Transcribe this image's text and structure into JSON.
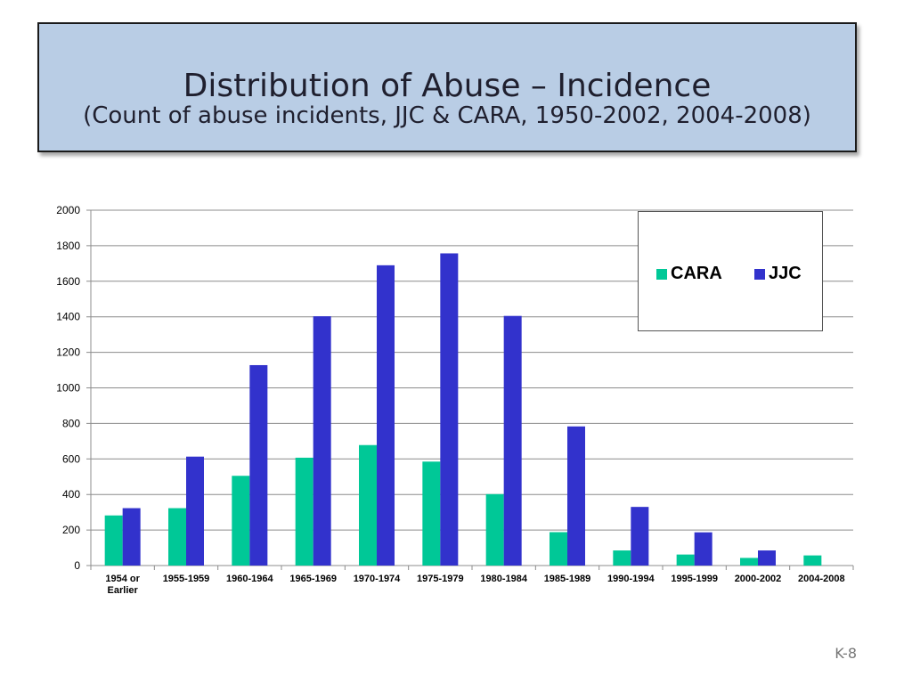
{
  "header": {
    "title": "Distribution of Abuse – Incidence",
    "subtitle": "(Count of abuse incidents, JJC & CARA, 1950-2002, 2004-2008)"
  },
  "footer": {
    "page_number": "K-8"
  },
  "colors": {
    "cara": "#00c897",
    "jjc": "#3232cc",
    "grid": "#8c8c8c",
    "title_bg": "#b9cde5"
  },
  "chart_data": {
    "type": "bar",
    "categories": [
      "1954 or Earlier",
      "1955-1959",
      "1960-1964",
      "1965-1969",
      "1970-1974",
      "1975-1979",
      "1980-1984",
      "1985-1989",
      "1990-1994",
      "1995-1999",
      "2000-2002",
      "2004-2008"
    ],
    "category_lines": [
      [
        "1954 or",
        "Earlier"
      ],
      [
        "1955-1959"
      ],
      [
        "1960-1964"
      ],
      [
        "1965-1969"
      ],
      [
        "1970-1974"
      ],
      [
        "1975-1979"
      ],
      [
        "1980-1984"
      ],
      [
        "1985-1989"
      ],
      [
        "1990-1994"
      ],
      [
        "1995-1999"
      ],
      [
        "2000-2002"
      ],
      [
        "2004-2008"
      ]
    ],
    "series": [
      {
        "name": "CARA",
        "color": "#00c897",
        "values": [
          282,
          323,
          505,
          607,
          678,
          585,
          402,
          188,
          85,
          62,
          43,
          57
        ]
      },
      {
        "name": "JJC",
        "color": "#3232cc",
        "values": [
          323,
          613,
          1128,
          1403,
          1690,
          1757,
          1405,
          783,
          330,
          187,
          85,
          0
        ]
      }
    ],
    "ylim": [
      0,
      2000
    ],
    "yticks": [
      0,
      200,
      400,
      600,
      800,
      1000,
      1200,
      1400,
      1600,
      1800,
      2000
    ],
    "grid": true,
    "legend_position": "top-right",
    "xlabel": "",
    "ylabel": ""
  }
}
